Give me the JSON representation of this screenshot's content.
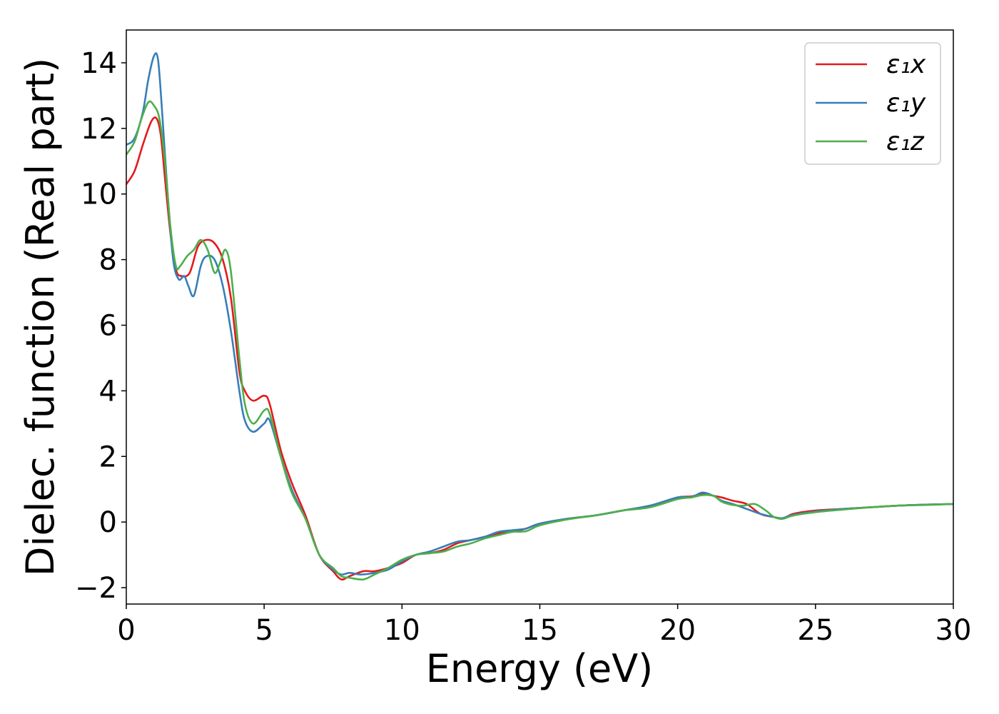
{
  "chart_data": {
    "type": "line",
    "title": "",
    "xlabel": "Energy (eV)",
    "ylabel": "Dielec. function (Real part)",
    "xlim": [
      0,
      30
    ],
    "ylim": [
      -2.5,
      15
    ],
    "xticks": [
      0,
      5,
      10,
      15,
      20,
      25,
      30
    ],
    "xtick_labels": [
      "0",
      "5",
      "10",
      "15",
      "20",
      "25",
      "30"
    ],
    "yticks": [
      -2,
      0,
      2,
      4,
      6,
      8,
      10,
      12,
      14
    ],
    "ytick_labels": [
      "−2",
      "0",
      "2",
      "4",
      "6",
      "8",
      "10",
      "12",
      "14"
    ],
    "grid": false,
    "legend_position": "top-right",
    "series": [
      {
        "name": "ε₁x",
        "color": "#e41a1c",
        "x": [
          0,
          0.3,
          0.6,
          0.9,
          1.1,
          1.25,
          1.4,
          1.6,
          1.8,
          2.0,
          2.3,
          2.6,
          2.9,
          3.2,
          3.5,
          3.8,
          4.1,
          4.3,
          4.6,
          5.0,
          5.2,
          5.6,
          6.0,
          6.5,
          7.0,
          7.5,
          7.8,
          8.1,
          8.6,
          9.0,
          9.5,
          10.0,
          10.5,
          11.0,
          11.5,
          12.0,
          12.5,
          13.0,
          13.5,
          14.0,
          14.5,
          15.0,
          16.0,
          17.0,
          18.0,
          19.0,
          20.0,
          20.5,
          20.9,
          21.3,
          21.6,
          22.0,
          22.5,
          23.0,
          23.5,
          23.8,
          24.2,
          25.0,
          26.0,
          27.0,
          28.0,
          29.0,
          30.0
        ],
        "y": [
          10.3,
          10.7,
          11.5,
          12.2,
          12.3,
          11.8,
          10.5,
          8.8,
          7.7,
          7.5,
          7.6,
          8.4,
          8.6,
          8.5,
          8.0,
          6.8,
          4.6,
          4.0,
          3.7,
          3.85,
          3.6,
          2.2,
          1.2,
          0.2,
          -1.0,
          -1.5,
          -1.75,
          -1.65,
          -1.5,
          -1.5,
          -1.4,
          -1.25,
          -1.0,
          -0.95,
          -0.85,
          -0.65,
          -0.55,
          -0.45,
          -0.35,
          -0.3,
          -0.2,
          -0.05,
          0.1,
          0.2,
          0.35,
          0.5,
          0.75,
          0.78,
          0.85,
          0.8,
          0.75,
          0.65,
          0.55,
          0.25,
          0.15,
          0.1,
          0.25,
          0.35,
          0.4,
          0.45,
          0.5,
          0.53,
          0.55
        ]
      },
      {
        "name": "ε₁y",
        "color": "#377eb8",
        "x": [
          0,
          0.3,
          0.6,
          0.8,
          1.0,
          1.15,
          1.3,
          1.5,
          1.7,
          1.9,
          2.1,
          2.25,
          2.45,
          2.7,
          2.9,
          3.2,
          3.5,
          3.8,
          4.1,
          4.3,
          4.6,
          5.0,
          5.2,
          5.6,
          6.0,
          6.5,
          7.0,
          7.5,
          7.8,
          8.1,
          8.5,
          9.0,
          9.5,
          10.0,
          10.5,
          11.0,
          11.5,
          12.0,
          12.5,
          13.0,
          13.5,
          14.0,
          14.5,
          15.0,
          16.0,
          17.0,
          18.0,
          19.0,
          20.0,
          20.5,
          20.9,
          21.3,
          21.6,
          22.0,
          22.5,
          23.0,
          23.5,
          23.8,
          24.2,
          25.0,
          26.0,
          27.0,
          28.0,
          29.0,
          30.0
        ],
        "y": [
          11.5,
          11.7,
          12.5,
          13.5,
          14.2,
          14.1,
          12.5,
          10.0,
          8.0,
          7.4,
          7.5,
          7.2,
          6.9,
          7.8,
          8.1,
          8.0,
          7.2,
          5.8,
          4.0,
          3.1,
          2.75,
          3.0,
          3.1,
          2.0,
          1.0,
          0.1,
          -1.0,
          -1.45,
          -1.6,
          -1.55,
          -1.6,
          -1.55,
          -1.45,
          -1.2,
          -1.0,
          -0.9,
          -0.75,
          -0.6,
          -0.55,
          -0.45,
          -0.3,
          -0.25,
          -0.2,
          -0.05,
          0.1,
          0.2,
          0.35,
          0.5,
          0.75,
          0.76,
          0.9,
          0.8,
          0.65,
          0.55,
          0.4,
          0.25,
          0.15,
          0.12,
          0.22,
          0.32,
          0.4,
          0.45,
          0.5,
          0.53,
          0.55
        ]
      },
      {
        "name": "ε₁z",
        "color": "#4daf4a",
        "x": [
          0,
          0.3,
          0.55,
          0.8,
          1.0,
          1.2,
          1.4,
          1.6,
          1.8,
          1.95,
          2.2,
          2.45,
          2.7,
          2.95,
          3.2,
          3.4,
          3.6,
          3.8,
          4.1,
          4.3,
          4.6,
          5.0,
          5.2,
          5.6,
          6.0,
          6.5,
          7.0,
          7.5,
          7.8,
          8.1,
          8.6,
          9.0,
          9.5,
          10.0,
          10.5,
          11.0,
          11.5,
          12.0,
          12.5,
          13.0,
          13.5,
          14.0,
          14.5,
          15.0,
          16.0,
          17.0,
          18.0,
          19.0,
          20.0,
          20.5,
          20.9,
          21.3,
          21.6,
          22.0,
          22.4,
          22.8,
          23.2,
          23.5,
          23.8,
          24.2,
          25.0,
          26.0,
          27.0,
          28.0,
          29.0,
          30.0
        ],
        "y": [
          11.2,
          11.6,
          12.3,
          12.8,
          12.7,
          12.3,
          11.0,
          9.0,
          7.8,
          7.8,
          8.1,
          8.3,
          8.6,
          8.3,
          7.6,
          7.9,
          8.3,
          7.6,
          5.0,
          3.6,
          3.0,
          3.4,
          3.3,
          2.0,
          0.9,
          0.1,
          -1.0,
          -1.4,
          -1.65,
          -1.7,
          -1.75,
          -1.6,
          -1.4,
          -1.15,
          -1.0,
          -0.95,
          -0.9,
          -0.75,
          -0.65,
          -0.5,
          -0.4,
          -0.3,
          -0.28,
          -0.1,
          0.08,
          0.2,
          0.35,
          0.45,
          0.7,
          0.75,
          0.82,
          0.8,
          0.62,
          0.52,
          0.5,
          0.55,
          0.35,
          0.15,
          0.1,
          0.2,
          0.3,
          0.38,
          0.45,
          0.5,
          0.52,
          0.55
        ]
      }
    ]
  }
}
